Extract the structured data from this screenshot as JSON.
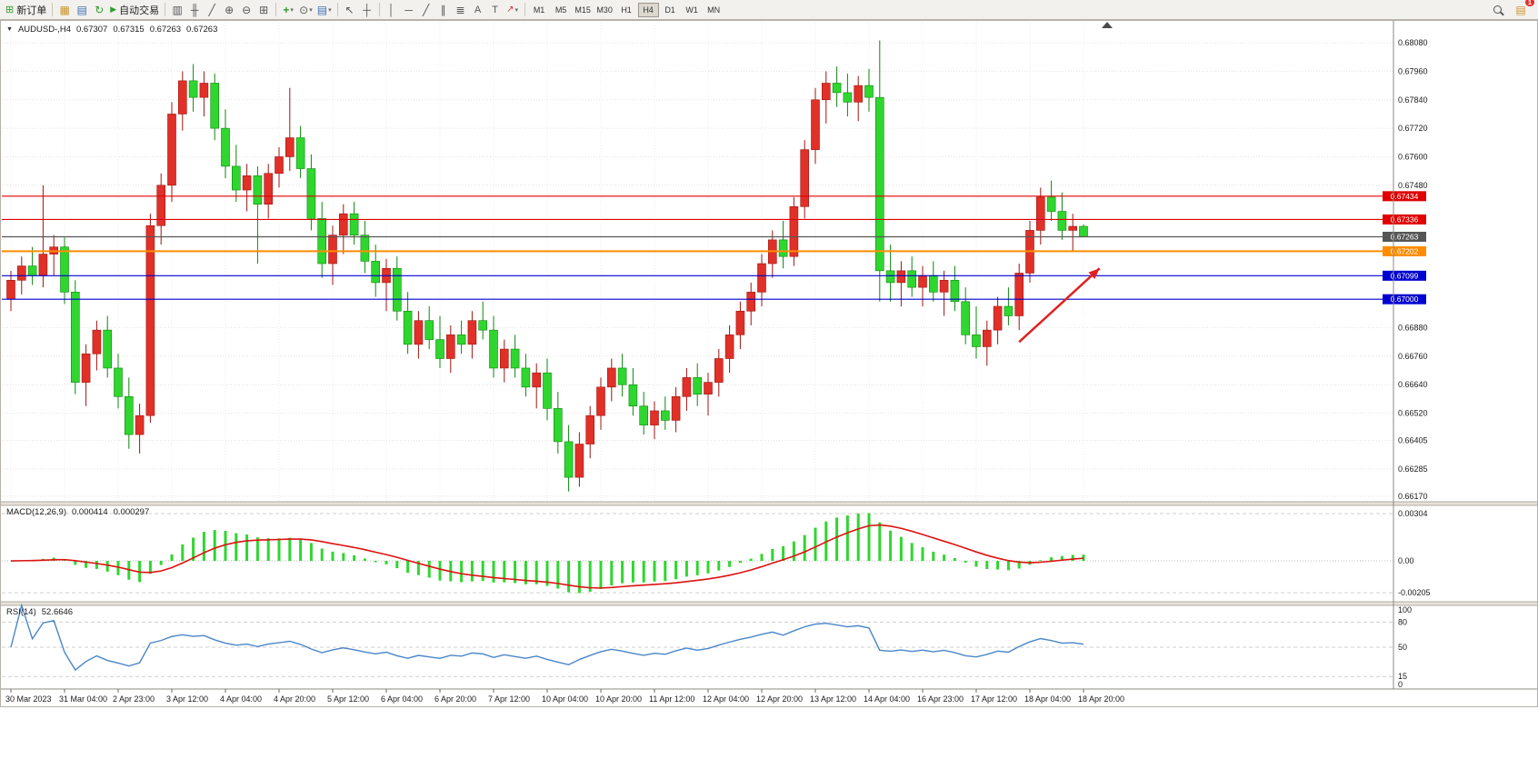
{
  "window": {
    "title": "AUDUSD-,H4"
  },
  "toolbar": {
    "new_order_label": "新订单",
    "auto_trading_label": "自动交易",
    "timeframes": [
      "M1",
      "M5",
      "M15",
      "M30",
      "H1",
      "H4",
      "D1",
      "W1",
      "MN"
    ],
    "active_timeframe": "H4",
    "notification_count": "1"
  },
  "icons": {
    "collapse": "▼",
    "caret": "▾",
    "new_order": "⊞",
    "charts": "▦",
    "profiles": "▤",
    "refresh": "↻",
    "play": "▶",
    "bar_chart": "▥",
    "candlestick": "╫",
    "line_chart": "╱",
    "zoom_in": "⊕",
    "zoom_out": "⊖",
    "tile_windows": "⊞",
    "indicator_add": "+",
    "clock": "⊙",
    "template": "▤",
    "cursor": "↖",
    "crosshair": "┼",
    "vertical_line": "│",
    "horizontal_line": "─",
    "trendline": "╱",
    "channel": "∥",
    "fibonacci": "≣",
    "text_tool": "A",
    "label_tool": "T",
    "arrow_tool": "↗",
    "notes": "▤"
  },
  "chart_header": {
    "symbol_period": "AUDUSD-,H4",
    "open": "0.67307",
    "high": "0.67315",
    "low": "0.67263",
    "close": "0.67263"
  },
  "indicators": {
    "macd": {
      "label": "MACD(12,26,9)",
      "value": "0.000414",
      "signal": "0.000297"
    },
    "rsi": {
      "label": "RSI(14)",
      "value": "52.6646"
    }
  },
  "price_lines": [
    {
      "price": 0.67434,
      "label": "0.67434",
      "color": "#e00000",
      "type": "resistance"
    },
    {
      "price": 0.67336,
      "label": "0.67336",
      "color": "#e00000",
      "type": "resistance"
    },
    {
      "price": 0.67263,
      "label": "0.67263",
      "color": "#565656",
      "type": "current"
    },
    {
      "price": 0.67202,
      "label": "0.67202",
      "color": "#ff8c00",
      "type": "pivot"
    },
    {
      "price": 0.67099,
      "label": "0.67099",
      "color": "#0000d0",
      "type": "support"
    },
    {
      "price": 0.67,
      "label": "0.67000",
      "color": "#0000d0",
      "type": "support"
    }
  ],
  "y_axis_labels": [
    "0.68080",
    "0.67960",
    "0.67840",
    "0.67720",
    "0.67600",
    "0.67480",
    "0.66880",
    "0.66760",
    "0.66640",
    "0.66520",
    "0.66405",
    "0.66285",
    "0.66170"
  ],
  "macd_axis_labels": [
    "0.00304",
    "0.00",
    "-0.00205"
  ],
  "rsi_axis_labels": [
    "100",
    "80",
    "50",
    "15",
    "0"
  ],
  "x_axis_labels": [
    "30 Mar 2023",
    "31 Mar 04:00",
    "2 Apr 23:00",
    "3 Apr 12:00",
    "4 Apr 04:00",
    "4 Apr 20:00",
    "5 Apr 12:00",
    "6 Apr 04:00",
    "6 Apr 20:00",
    "7 Apr 12:00",
    "10 Apr 04:00",
    "10 Apr 20:00",
    "11 Apr 12:00",
    "12 Apr 04:00",
    "12 Apr 20:00",
    "13 Apr 12:00",
    "14 Apr 04:00",
    "16 Apr 23:00",
    "17 Apr 12:00",
    "18 Apr 04:00",
    "18 Apr 20:00"
  ],
  "annotations": {
    "arrow": {
      "color": "#e02020",
      "from_bar": 94,
      "from_price": 0.6682,
      "to_bar": 101.5,
      "to_price": 0.6713
    }
  },
  "chart_data": {
    "type": "candlestick",
    "title": "AUDUSD-,H4",
    "symbol": "AUDUSD",
    "period": "H4",
    "up_color": "#e03028",
    "down_color": "#2fd62f",
    "price_range": [
      0.66147,
      0.68176
    ],
    "label_step": 5,
    "macd": {
      "params": [
        12,
        26,
        9
      ],
      "range": [
        -0.00263,
        0.00357
      ],
      "line_color": "#dd1111",
      "hist_color": "#2fd62f"
    },
    "rsi": {
      "period": 14,
      "range": [
        0,
        100
      ],
      "levels": [
        80,
        50,
        15
      ],
      "line_color": "#4a86c8"
    },
    "candles": [
      [
        0.67,
        0.6712,
        0.6695,
        0.6708
      ],
      [
        0.6708,
        0.6718,
        0.6702,
        0.6714
      ],
      [
        0.6714,
        0.6722,
        0.6706,
        0.671
      ],
      [
        0.671,
        0.6748,
        0.6705,
        0.6719
      ],
      [
        0.6719,
        0.6727,
        0.671,
        0.6722
      ],
      [
        0.6722,
        0.6726,
        0.6698,
        0.6703
      ],
      [
        0.6703,
        0.6708,
        0.666,
        0.6665
      ],
      [
        0.6665,
        0.6681,
        0.6655,
        0.6677
      ],
      [
        0.6677,
        0.6691,
        0.667,
        0.6687
      ],
      [
        0.6687,
        0.6693,
        0.6667,
        0.6671
      ],
      [
        0.6671,
        0.6677,
        0.6654,
        0.6659
      ],
      [
        0.6659,
        0.6667,
        0.6637,
        0.6643
      ],
      [
        0.6643,
        0.6656,
        0.6635,
        0.6651
      ],
      [
        0.6651,
        0.6736,
        0.6648,
        0.6731
      ],
      [
        0.6731,
        0.6753,
        0.6723,
        0.6748
      ],
      [
        0.6748,
        0.6783,
        0.6741,
        0.6778
      ],
      [
        0.6778,
        0.6796,
        0.6771,
        0.6792
      ],
      [
        0.6792,
        0.6799,
        0.6779,
        0.6785
      ],
      [
        0.6785,
        0.6796,
        0.6777,
        0.6791
      ],
      [
        0.6791,
        0.6795,
        0.6767,
        0.6772
      ],
      [
        0.6772,
        0.678,
        0.6751,
        0.6756
      ],
      [
        0.6756,
        0.6765,
        0.6741,
        0.6746
      ],
      [
        0.6746,
        0.6757,
        0.6737,
        0.6752
      ],
      [
        0.6752,
        0.6756,
        0.6715,
        0.674
      ],
      [
        0.674,
        0.6757,
        0.6734,
        0.6753
      ],
      [
        0.6753,
        0.6764,
        0.6747,
        0.676
      ],
      [
        0.676,
        0.6789,
        0.6754,
        0.6768
      ],
      [
        0.6768,
        0.6773,
        0.6751,
        0.6755
      ],
      [
        0.6755,
        0.6761,
        0.6729,
        0.6734
      ],
      [
        0.6734,
        0.6741,
        0.6709,
        0.6715
      ],
      [
        0.6715,
        0.6731,
        0.6706,
        0.6727
      ],
      [
        0.6727,
        0.674,
        0.6719,
        0.6736
      ],
      [
        0.6736,
        0.6741,
        0.6723,
        0.6727
      ],
      [
        0.6727,
        0.6733,
        0.6711,
        0.6716
      ],
      [
        0.6716,
        0.6723,
        0.6701,
        0.6707
      ],
      [
        0.6707,
        0.6717,
        0.6695,
        0.6713
      ],
      [
        0.6713,
        0.6718,
        0.6691,
        0.6695
      ],
      [
        0.6695,
        0.6703,
        0.6677,
        0.6681
      ],
      [
        0.6681,
        0.6695,
        0.6675,
        0.6691
      ],
      [
        0.6691,
        0.6697,
        0.6679,
        0.6683
      ],
      [
        0.6683,
        0.6693,
        0.6671,
        0.6675
      ],
      [
        0.6675,
        0.6689,
        0.6669,
        0.6685
      ],
      [
        0.6685,
        0.6691,
        0.6677,
        0.6681
      ],
      [
        0.6681,
        0.6695,
        0.6675,
        0.6691
      ],
      [
        0.6691,
        0.6699,
        0.6683,
        0.6687
      ],
      [
        0.6687,
        0.6693,
        0.6667,
        0.6671
      ],
      [
        0.6671,
        0.6683,
        0.6665,
        0.6679
      ],
      [
        0.6679,
        0.6685,
        0.6667,
        0.6671
      ],
      [
        0.6671,
        0.6677,
        0.6659,
        0.6663
      ],
      [
        0.6663,
        0.6673,
        0.6654,
        0.6669
      ],
      [
        0.6669,
        0.6675,
        0.6649,
        0.6654
      ],
      [
        0.6654,
        0.6661,
        0.6635,
        0.664
      ],
      [
        0.664,
        0.6647,
        0.6619,
        0.6625
      ],
      [
        0.6625,
        0.6644,
        0.6621,
        0.6639
      ],
      [
        0.6639,
        0.6655,
        0.6633,
        0.6651
      ],
      [
        0.6651,
        0.6667,
        0.6645,
        0.6663
      ],
      [
        0.6663,
        0.6675,
        0.6657,
        0.6671
      ],
      [
        0.6671,
        0.6677,
        0.6659,
        0.6664
      ],
      [
        0.6664,
        0.6671,
        0.6651,
        0.6655
      ],
      [
        0.6655,
        0.6661,
        0.6643,
        0.6647
      ],
      [
        0.6647,
        0.6657,
        0.6641,
        0.6653
      ],
      [
        0.6653,
        0.6659,
        0.6645,
        0.6649
      ],
      [
        0.6649,
        0.6663,
        0.6644,
        0.6659
      ],
      [
        0.6659,
        0.6671,
        0.6653,
        0.6667
      ],
      [
        0.6667,
        0.6673,
        0.6655,
        0.666
      ],
      [
        0.666,
        0.6669,
        0.6651,
        0.6665
      ],
      [
        0.6665,
        0.6679,
        0.6659,
        0.6675
      ],
      [
        0.6675,
        0.6689,
        0.6669,
        0.6685
      ],
      [
        0.6685,
        0.6699,
        0.6679,
        0.6695
      ],
      [
        0.6695,
        0.6707,
        0.6689,
        0.6703
      ],
      [
        0.6703,
        0.6719,
        0.6697,
        0.6715
      ],
      [
        0.6715,
        0.6729,
        0.6709,
        0.6725
      ],
      [
        0.6725,
        0.6733,
        0.6713,
        0.6718
      ],
      [
        0.6718,
        0.6743,
        0.6714,
        0.6739
      ],
      [
        0.6739,
        0.6767,
        0.6734,
        0.6763
      ],
      [
        0.6763,
        0.6789,
        0.6757,
        0.6784
      ],
      [
        0.6784,
        0.6796,
        0.6774,
        0.6791
      ],
      [
        0.6791,
        0.6798,
        0.6781,
        0.6787
      ],
      [
        0.6787,
        0.6795,
        0.6777,
        0.6783
      ],
      [
        0.6783,
        0.6794,
        0.6775,
        0.679
      ],
      [
        0.679,
        0.6797,
        0.6779,
        0.6785
      ],
      [
        0.6785,
        0.6809,
        0.6699,
        0.6712
      ],
      [
        0.6712,
        0.6723,
        0.6699,
        0.6707
      ],
      [
        0.6707,
        0.6716,
        0.6697,
        0.6712
      ],
      [
        0.6712,
        0.6718,
        0.6701,
        0.6705
      ],
      [
        0.6705,
        0.6714,
        0.6697,
        0.671
      ],
      [
        0.671,
        0.6716,
        0.6699,
        0.6703
      ],
      [
        0.6703,
        0.6712,
        0.6693,
        0.6708
      ],
      [
        0.6708,
        0.6714,
        0.6695,
        0.6699
      ],
      [
        0.6699,
        0.6705,
        0.6681,
        0.6685
      ],
      [
        0.6685,
        0.6697,
        0.6675,
        0.668
      ],
      [
        0.668,
        0.6691,
        0.6672,
        0.6687
      ],
      [
        0.6687,
        0.6701,
        0.6681,
        0.6697
      ],
      [
        0.6697,
        0.6705,
        0.6689,
        0.6693
      ],
      [
        0.6693,
        0.6715,
        0.6687,
        0.6711
      ],
      [
        0.6711,
        0.6733,
        0.6707,
        0.6729
      ],
      [
        0.6729,
        0.6747,
        0.6723,
        0.6743
      ],
      [
        0.6743,
        0.675,
        0.6733,
        0.6737
      ],
      [
        0.6737,
        0.6745,
        0.6725,
        0.6729
      ],
      [
        0.6729,
        0.6736,
        0.672,
        0.67307
      ],
      [
        0.67307,
        0.67315,
        0.67263,
        0.67263
      ]
    ]
  }
}
